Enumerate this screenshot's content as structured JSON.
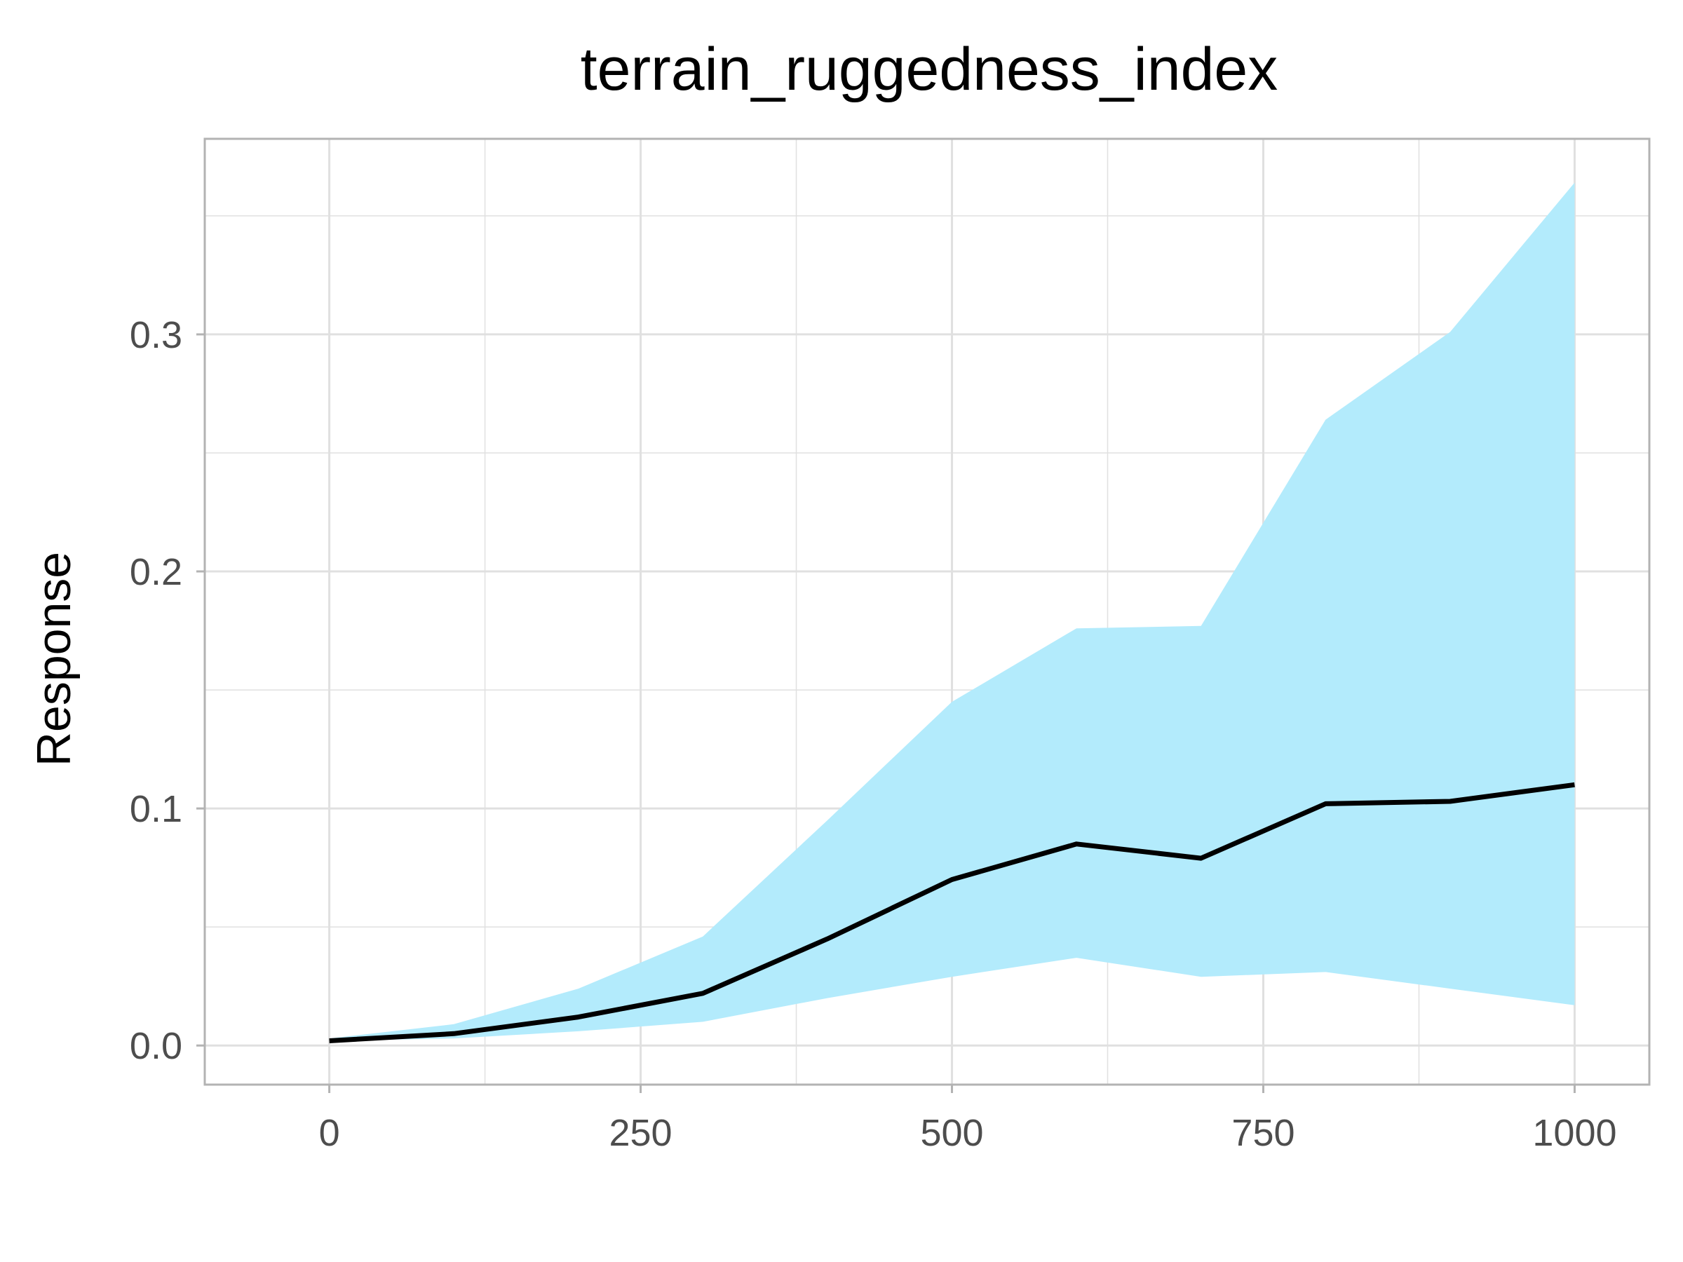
{
  "chart_data": {
    "type": "line",
    "title": "terrain_ruggedness_index",
    "xlabel": "",
    "ylabel": "Response",
    "xlim": [
      -100,
      1060
    ],
    "ylim": [
      -0.0165,
      0.3825
    ],
    "x_ticks": [
      0,
      250,
      500,
      750,
      1000
    ],
    "x_tick_labels": [
      "0",
      "250",
      "500",
      "750",
      "1000"
    ],
    "x_minor": [
      125,
      375,
      625,
      875
    ],
    "y_ticks": [
      0.0,
      0.1,
      0.2,
      0.3
    ],
    "y_tick_labels": [
      "0.0",
      "0.1",
      "0.2",
      "0.3"
    ],
    "y_minor": [
      0.05,
      0.15,
      0.25,
      0.35
    ],
    "grid": true,
    "colors": {
      "line": "#000000",
      "band": "#b3ebfc",
      "grid": "#e0e0e0",
      "frame": "#b3b3b3"
    },
    "series": [
      {
        "x": [
          0,
          100,
          200,
          300,
          400,
          500,
          600,
          700,
          800,
          900,
          1000
        ],
        "y": [
          0.002,
          0.005,
          0.012,
          0.022,
          0.045,
          0.07,
          0.085,
          0.079,
          0.102,
          0.103,
          0.11
        ],
        "lower": [
          0.002,
          0.003,
          0.006,
          0.01,
          0.02,
          0.029,
          0.037,
          0.029,
          0.031,
          0.024,
          0.017
        ],
        "upper": [
          0.003,
          0.009,
          0.024,
          0.046,
          0.095,
          0.145,
          0.176,
          0.177,
          0.264,
          0.301,
          0.364
        ]
      }
    ]
  }
}
